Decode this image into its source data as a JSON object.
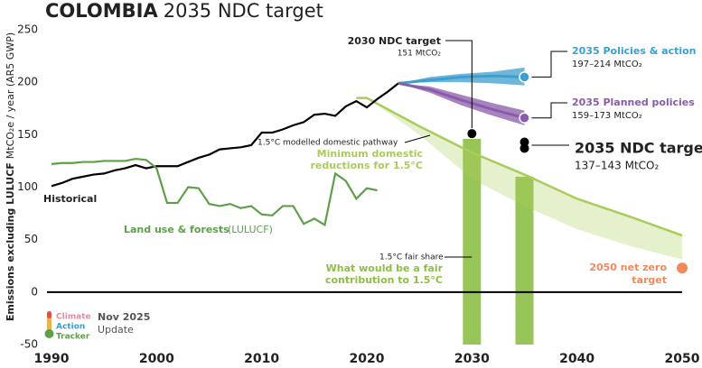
{
  "chart_data": {
    "type": "line",
    "title": "COLOMBIA",
    "subtitle": "2035 NDC target",
    "y_label": "Emissions excluding LULUCF",
    "y_label_unit": "MtCO₂e / year (AR5 GWP)",
    "xlim": [
      1990,
      2050
    ],
    "ylim": [
      -50,
      250
    ],
    "xticks": [
      1990,
      2000,
      2010,
      2020,
      2030,
      2040,
      2050
    ],
    "yticks": [
      -50,
      0,
      50,
      100,
      150,
      200,
      250
    ],
    "grid": false,
    "zero_line": true,
    "series": [
      {
        "name": "Historical",
        "color": "#000000",
        "x": [
          1990,
          1991,
          1992,
          1993,
          1994,
          1995,
          1996,
          1997,
          1998,
          1999,
          2000,
          2001,
          2002,
          2003,
          2004,
          2005,
          2006,
          2007,
          2008,
          2009,
          2010,
          2011,
          2012,
          2013,
          2014,
          2015,
          2016,
          2017,
          2018,
          2019,
          2020,
          2021,
          2022,
          2023
        ],
        "values": [
          101,
          104,
          108,
          110,
          112,
          113,
          116,
          118,
          121,
          118,
          120,
          120,
          120,
          124,
          128,
          131,
          136,
          137,
          138,
          140,
          152,
          152,
          155,
          159,
          162,
          169,
          170,
          168,
          177,
          182,
          176,
          184,
          191,
          199
        ]
      },
      {
        "name": "Land use & forests",
        "name_note": "(LULUCF)",
        "color": "#5ea04a",
        "x": [
          1990,
          1991,
          1992,
          1993,
          1994,
          1995,
          1996,
          1997,
          1998,
          1999,
          2000,
          2001,
          2002,
          2003,
          2004,
          2005,
          2006,
          2007,
          2008,
          2009,
          2010,
          2011,
          2012,
          2013,
          2014,
          2015,
          2016,
          2017,
          2018,
          2019,
          2020,
          2021
        ],
        "values": [
          122,
          123,
          123,
          124,
          124,
          125,
          125,
          125,
          127,
          126,
          118,
          85,
          85,
          100,
          99,
          84,
          82,
          84,
          80,
          82,
          74,
          73,
          82,
          82,
          65,
          70,
          64,
          113,
          106,
          89,
          99,
          97
        ]
      }
    ],
    "pathway": {
      "name": "1.5°C modelled domestic pathway",
      "label_lines": [
        "Minimum domestic",
        "reductions for 1.5°C"
      ],
      "color": "#a9cc5a",
      "x": [
        2019,
        2020,
        2025,
        2030,
        2035,
        2040,
        2045,
        2050
      ],
      "values": [
        185,
        185,
        158,
        133,
        112,
        89,
        72,
        54
      ],
      "lower": [
        185,
        185,
        150,
        108,
        82,
        60,
        44,
        31
      ]
    },
    "fair_share": {
      "name": "1.5°C fair share",
      "label_lines": [
        "What would be a fair",
        "contribution to 1.5°C"
      ],
      "color": "#8dbf45",
      "x": [
        2030,
        2035
      ],
      "values": [
        146,
        110
      ]
    },
    "ranges": [
      {
        "name": "2035 Policies & action",
        "range_label": "197–214 MtCO₂",
        "color": "#3d9fcf",
        "x": [
          2023,
          2026,
          2029,
          2032,
          2035
        ],
        "values": [
          199,
          202,
          205,
          206,
          205
        ],
        "lower": [
          199,
          200,
          200,
          199,
          197
        ],
        "upper": [
          199,
          205,
          208,
          210,
          214
        ]
      },
      {
        "name": "2035 Planned policies",
        "range_label": "159–173 MtCO₂",
        "color": "#8a5bab",
        "x": [
          2023,
          2026,
          2029,
          2032,
          2035
        ],
        "values": [
          199,
          193,
          183,
          174,
          166
        ],
        "lower": [
          199,
          190,
          178,
          168,
          159
        ],
        "upper": [
          199,
          196,
          188,
          180,
          173
        ]
      }
    ],
    "targets": [
      {
        "name": "2030 NDC target",
        "range_label": "151 MtCO₂",
        "color": "#000000",
        "x": 2030,
        "values": [
          151
        ]
      },
      {
        "name": "2035 NDC target",
        "range_label": "137–143 MtCO₂",
        "color": "#000000",
        "x": 2035,
        "values": [
          143,
          137
        ]
      },
      {
        "name": "2050 net zero",
        "name_line2": "target",
        "color": "#f08a5d",
        "x": 2050,
        "values": [
          23
        ]
      }
    ],
    "note": {
      "date": "Nov 2025",
      "text": "Update"
    },
    "logo": [
      "Climate",
      "Action",
      "Tracker"
    ]
  }
}
